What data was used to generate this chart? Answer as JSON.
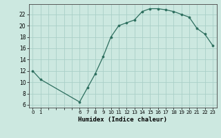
{
  "x": [
    0,
    1,
    6,
    7,
    8,
    9,
    10,
    11,
    12,
    13,
    14,
    15,
    16,
    17,
    18,
    19,
    20,
    21,
    22,
    23
  ],
  "y": [
    12,
    10.5,
    6.5,
    9,
    11.5,
    14.5,
    18,
    20,
    20.5,
    21,
    22.5,
    23,
    23,
    22.8,
    22.5,
    22,
    21.5,
    19.5,
    18.5,
    16.5
  ],
  "line_color": "#2d6e5e",
  "marker_color": "#2d6e5e",
  "bg_color": "#cce8e0",
  "grid_color": "#aacfc8",
  "xlabel": "Humidex (Indice chaleur)",
  "xlim": [
    -0.5,
    23.5
  ],
  "ylim": [
    5.5,
    23.8
  ],
  "yticks": [
    6,
    8,
    10,
    12,
    14,
    16,
    18,
    20,
    22
  ],
  "xtick_labels": [
    "0",
    "1",
    "",
    "",
    "",
    "",
    "6",
    "7",
    "8",
    "9",
    "10",
    "11",
    "12",
    "13",
    "14",
    "15",
    "16",
    "17",
    "18",
    "19",
    "20",
    "21",
    "22",
    "23"
  ],
  "xtick_positions": [
    0,
    1,
    2,
    3,
    4,
    5,
    6,
    7,
    8,
    9,
    10,
    11,
    12,
    13,
    14,
    15,
    16,
    17,
    18,
    19,
    20,
    21,
    22,
    23
  ]
}
